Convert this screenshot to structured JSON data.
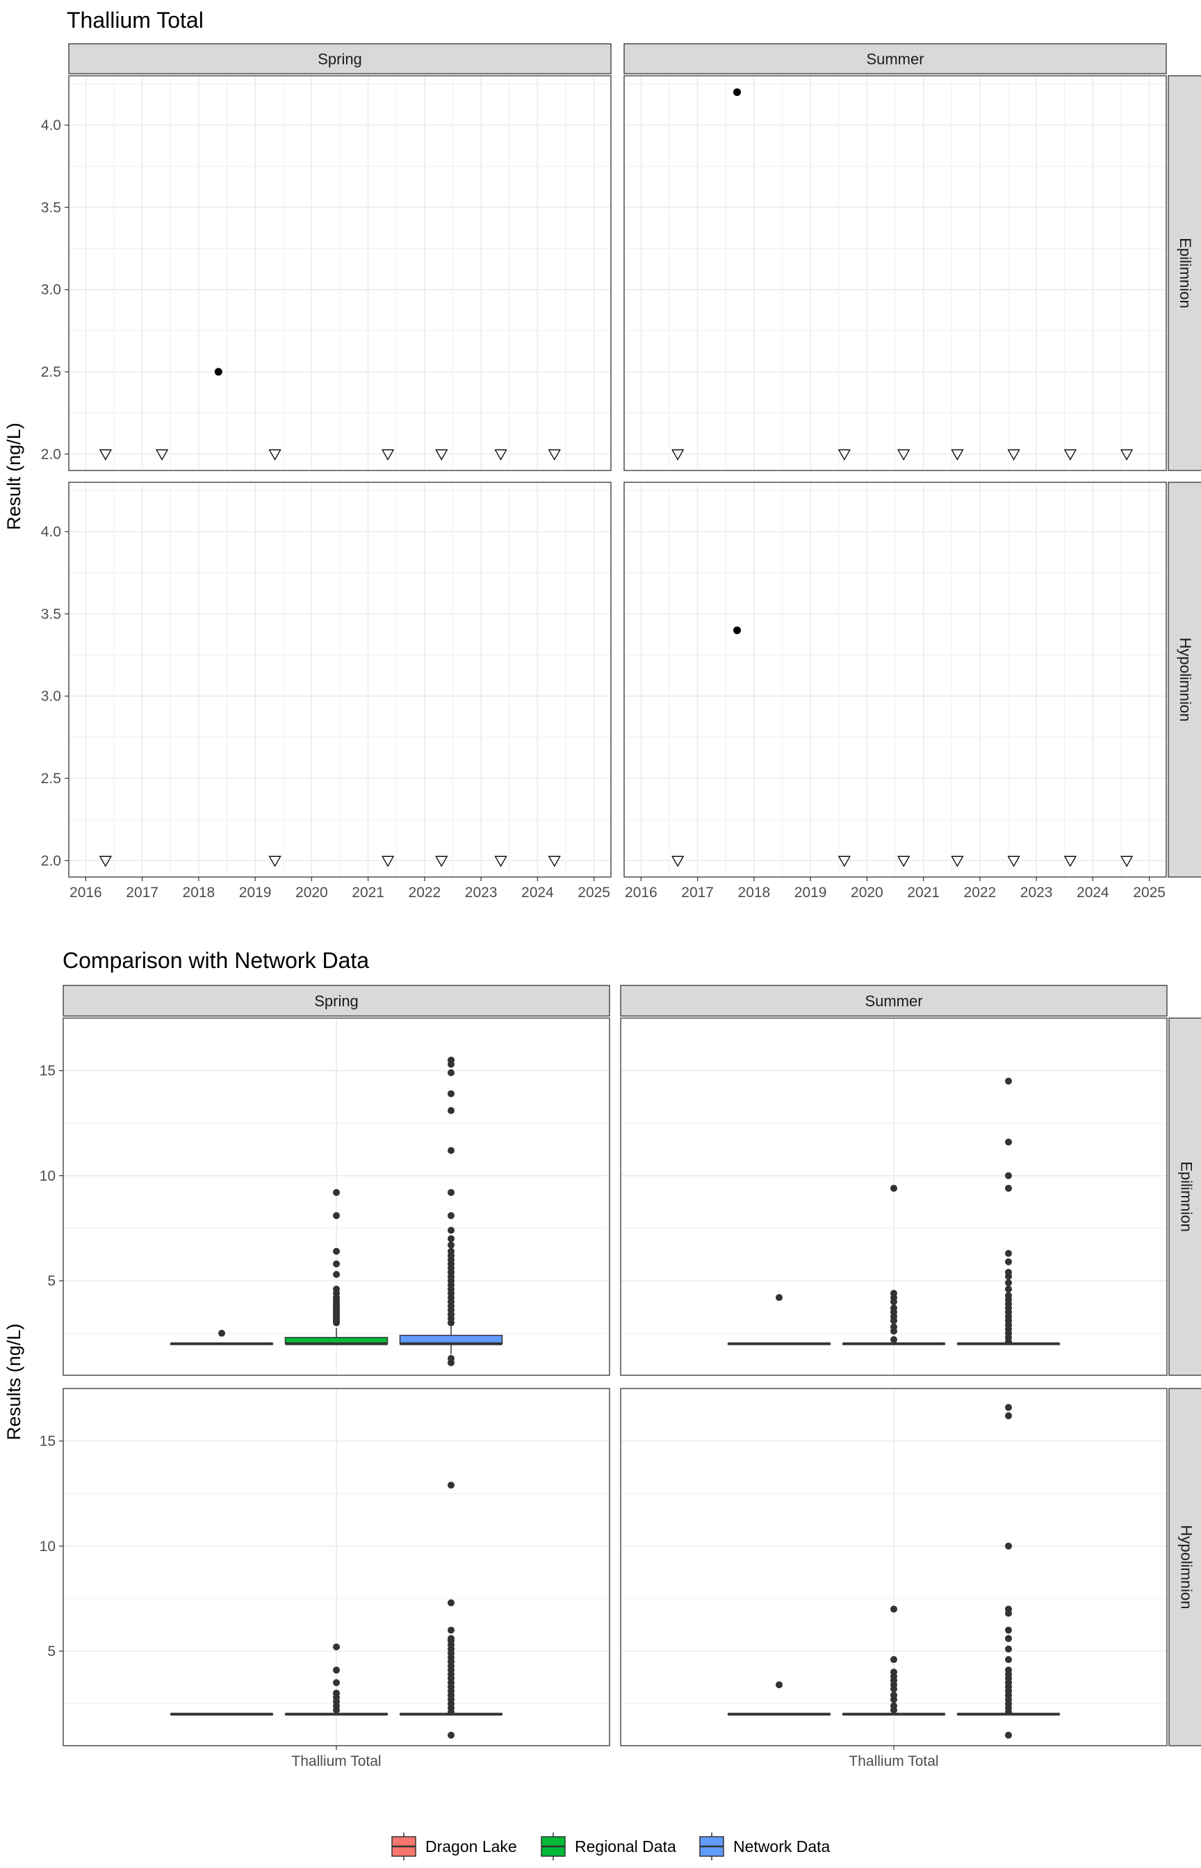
{
  "chart_data": [
    {
      "type": "scatter",
      "title": "Thallium Total",
      "ylabel": "Result (ng/L)",
      "xlabel": "",
      "columns": [
        "Spring",
        "Summer"
      ],
      "rows": [
        "Epilimnion",
        "Hypolimnion"
      ],
      "xlim": [
        2015.7,
        2025.3
      ],
      "ylim": [
        1.9,
        4.3
      ],
      "x_ticks": [
        2016,
        2017,
        2018,
        2019,
        2020,
        2021,
        2022,
        2023,
        2024,
        2025
      ],
      "x_tick_labels": [
        "2016",
        "2017",
        "2018",
        "2019",
        "2020",
        "2021",
        "2022",
        "2023",
        "2024",
        "2025"
      ],
      "y_ticks": [
        2.0,
        2.5,
        3.0,
        3.5,
        4.0
      ],
      "y_tick_labels": [
        "2.0",
        "2.5",
        "3.0",
        "3.5",
        "4.0"
      ],
      "grid": true,
      "marker_legend": {
        "filled-circle": "detected",
        "open-triangle-down": "below detection limit"
      },
      "panels": [
        {
          "column": "Spring",
          "row": "Epilimnion",
          "detected": [
            {
              "x": 2018.35,
              "y": 2.5
            }
          ],
          "below_detection": [
            {
              "x": 2016.35,
              "y": 2.0
            },
            {
              "x": 2017.35,
              "y": 2.0
            },
            {
              "x": 2019.35,
              "y": 2.0
            },
            {
              "x": 2021.35,
              "y": 2.0
            },
            {
              "x": 2022.3,
              "y": 2.0
            },
            {
              "x": 2023.35,
              "y": 2.0
            },
            {
              "x": 2024.3,
              "y": 2.0
            }
          ]
        },
        {
          "column": "Summer",
          "row": "Epilimnion",
          "detected": [
            {
              "x": 2017.7,
              "y": 4.2
            }
          ],
          "below_detection": [
            {
              "x": 2016.65,
              "y": 2.0
            },
            {
              "x": 2019.6,
              "y": 2.0
            },
            {
              "x": 2020.65,
              "y": 2.0
            },
            {
              "x": 2021.6,
              "y": 2.0
            },
            {
              "x": 2022.6,
              "y": 2.0
            },
            {
              "x": 2023.6,
              "y": 2.0
            },
            {
              "x": 2024.6,
              "y": 2.0
            }
          ]
        },
        {
          "column": "Spring",
          "row": "Hypolimnion",
          "detected": [],
          "below_detection": [
            {
              "x": 2016.35,
              "y": 2.0
            },
            {
              "x": 2019.35,
              "y": 2.0
            },
            {
              "x": 2021.35,
              "y": 2.0
            },
            {
              "x": 2022.3,
              "y": 2.0
            },
            {
              "x": 2023.35,
              "y": 2.0
            },
            {
              "x": 2024.3,
              "y": 2.0
            }
          ]
        },
        {
          "column": "Summer",
          "row": "Hypolimnion",
          "detected": [
            {
              "x": 2017.7,
              "y": 3.4
            }
          ],
          "below_detection": [
            {
              "x": 2016.65,
              "y": 2.0
            },
            {
              "x": 2019.6,
              "y": 2.0
            },
            {
              "x": 2020.65,
              "y": 2.0
            },
            {
              "x": 2021.6,
              "y": 2.0
            },
            {
              "x": 2022.6,
              "y": 2.0
            },
            {
              "x": 2023.6,
              "y": 2.0
            },
            {
              "x": 2024.6,
              "y": 2.0
            }
          ]
        }
      ]
    },
    {
      "type": "box",
      "title": "Comparison with Network Data",
      "ylabel": "Results (ng/L)",
      "xlabel": "",
      "columns": [
        "Spring",
        "Summer"
      ],
      "rows": [
        "Epilimnion",
        "Hypolimnion"
      ],
      "categories": [
        "Thallium Total"
      ],
      "ylim": [
        0.5,
        17.5
      ],
      "y_ticks": [
        5,
        10,
        15
      ],
      "y_tick_labels": [
        "5",
        "10",
        "15"
      ],
      "grid": true,
      "legend": {
        "position": "bottom",
        "entries": [
          {
            "name": "Dragon Lake",
            "color": "#F8766D"
          },
          {
            "name": "Regional Data",
            "color": "#00BA38"
          },
          {
            "name": "Network Data",
            "color": "#619CFF"
          }
        ]
      },
      "panels": [
        {
          "column": "Spring",
          "row": "Epilimnion",
          "boxes": [
            {
              "series": "Dragon Lake",
              "q1": 2.0,
              "median": 2.0,
              "q3": 2.0,
              "whisker_low": 2.0,
              "whisker_high": 2.0,
              "outliers": [
                2.5
              ]
            },
            {
              "series": "Regional Data",
              "q1": 2.0,
              "median": 2.0,
              "q3": 2.3,
              "whisker_low": 2.0,
              "whisker_high": 2.75,
              "outliers": [
                3.0,
                3.1,
                3.2,
                3.3,
                3.4,
                3.5,
                3.6,
                3.7,
                3.8,
                3.9,
                4.0,
                4.1,
                4.2,
                4.4,
                4.6,
                5.3,
                5.8,
                6.4,
                8.1,
                9.2
              ]
            },
            {
              "series": "Network Data",
              "q1": 2.0,
              "median": 2.0,
              "q3": 2.4,
              "whisker_low": 1.5,
              "whisker_high": 2.9,
              "outliers": [
                1.3,
                1.1,
                3.0,
                3.2,
                3.4,
                3.6,
                3.8,
                4.0,
                4.2,
                4.4,
                4.6,
                4.8,
                5.0,
                5.2,
                5.4,
                5.6,
                5.8,
                6.0,
                6.2,
                6.4,
                6.7,
                7.0,
                7.4,
                8.1,
                9.2,
                11.2,
                13.1,
                13.9,
                14.9,
                15.3,
                15.5
              ]
            }
          ]
        },
        {
          "column": "Summer",
          "row": "Epilimnion",
          "boxes": [
            {
              "series": "Dragon Lake",
              "q1": 2.0,
              "median": 2.0,
              "q3": 2.0,
              "whisker_low": 2.0,
              "whisker_high": 2.0,
              "outliers": [
                4.2
              ]
            },
            {
              "series": "Regional Data",
              "q1": 2.0,
              "median": 2.0,
              "q3": 2.0,
              "whisker_low": 2.0,
              "whisker_high": 2.0,
              "outliers": [
                2.2,
                2.6,
                2.8,
                3.1,
                3.3,
                3.5,
                3.7,
                4.0,
                4.2,
                4.4,
                9.4
              ]
            },
            {
              "series": "Network Data",
              "q1": 2.0,
              "median": 2.0,
              "q3": 2.0,
              "whisker_low": 2.0,
              "whisker_high": 2.0,
              "outliers": [
                2.1,
                2.3,
                2.5,
                2.7,
                2.9,
                3.1,
                3.3,
                3.5,
                3.7,
                3.9,
                4.1,
                4.3,
                4.6,
                4.9,
                5.2,
                5.4,
                5.9,
                6.3,
                9.4,
                10.0,
                11.6,
                14.5
              ]
            }
          ]
        },
        {
          "column": "Spring",
          "row": "Hypolimnion",
          "boxes": [
            {
              "series": "Dragon Lake",
              "q1": 2.0,
              "median": 2.0,
              "q3": 2.0,
              "whisker_low": 2.0,
              "whisker_high": 2.0,
              "outliers": []
            },
            {
              "series": "Regional Data",
              "q1": 2.0,
              "median": 2.0,
              "q3": 2.0,
              "whisker_low": 2.0,
              "whisker_high": 2.0,
              "outliers": [
                2.2,
                2.4,
                2.6,
                2.8,
                3.0,
                3.5,
                4.1,
                5.2
              ]
            },
            {
              "series": "Network Data",
              "q1": 2.0,
              "median": 2.0,
              "q3": 2.0,
              "whisker_low": 2.0,
              "whisker_high": 2.0,
              "outliers": [
                1.0,
                2.1,
                2.3,
                2.5,
                2.7,
                2.9,
                3.1,
                3.3,
                3.5,
                3.7,
                3.9,
                4.1,
                4.3,
                4.5,
                4.7,
                4.9,
                5.1,
                5.3,
                5.5,
                5.6,
                6.0,
                7.3,
                12.9
              ]
            }
          ]
        },
        {
          "column": "Summer",
          "row": "Hypolimnion",
          "boxes": [
            {
              "series": "Dragon Lake",
              "q1": 2.0,
              "median": 2.0,
              "q3": 2.0,
              "whisker_low": 2.0,
              "whisker_high": 2.0,
              "outliers": [
                3.4
              ]
            },
            {
              "series": "Regional Data",
              "q1": 2.0,
              "median": 2.0,
              "q3": 2.0,
              "whisker_low": 2.0,
              "whisker_high": 2.0,
              "outliers": [
                2.2,
                2.4,
                2.7,
                2.9,
                3.2,
                3.4,
                3.6,
                3.8,
                4.0,
                4.6,
                7.0
              ]
            },
            {
              "series": "Network Data",
              "q1": 2.0,
              "median": 2.0,
              "q3": 2.0,
              "whisker_low": 2.0,
              "whisker_high": 2.0,
              "outliers": [
                1.0,
                2.1,
                2.3,
                2.5,
                2.7,
                2.9,
                3.1,
                3.3,
                3.5,
                3.7,
                3.9,
                4.1,
                4.6,
                5.1,
                5.6,
                6.0,
                6.8,
                7.0,
                10.0,
                16.2,
                16.6
              ]
            }
          ]
        }
      ]
    }
  ]
}
